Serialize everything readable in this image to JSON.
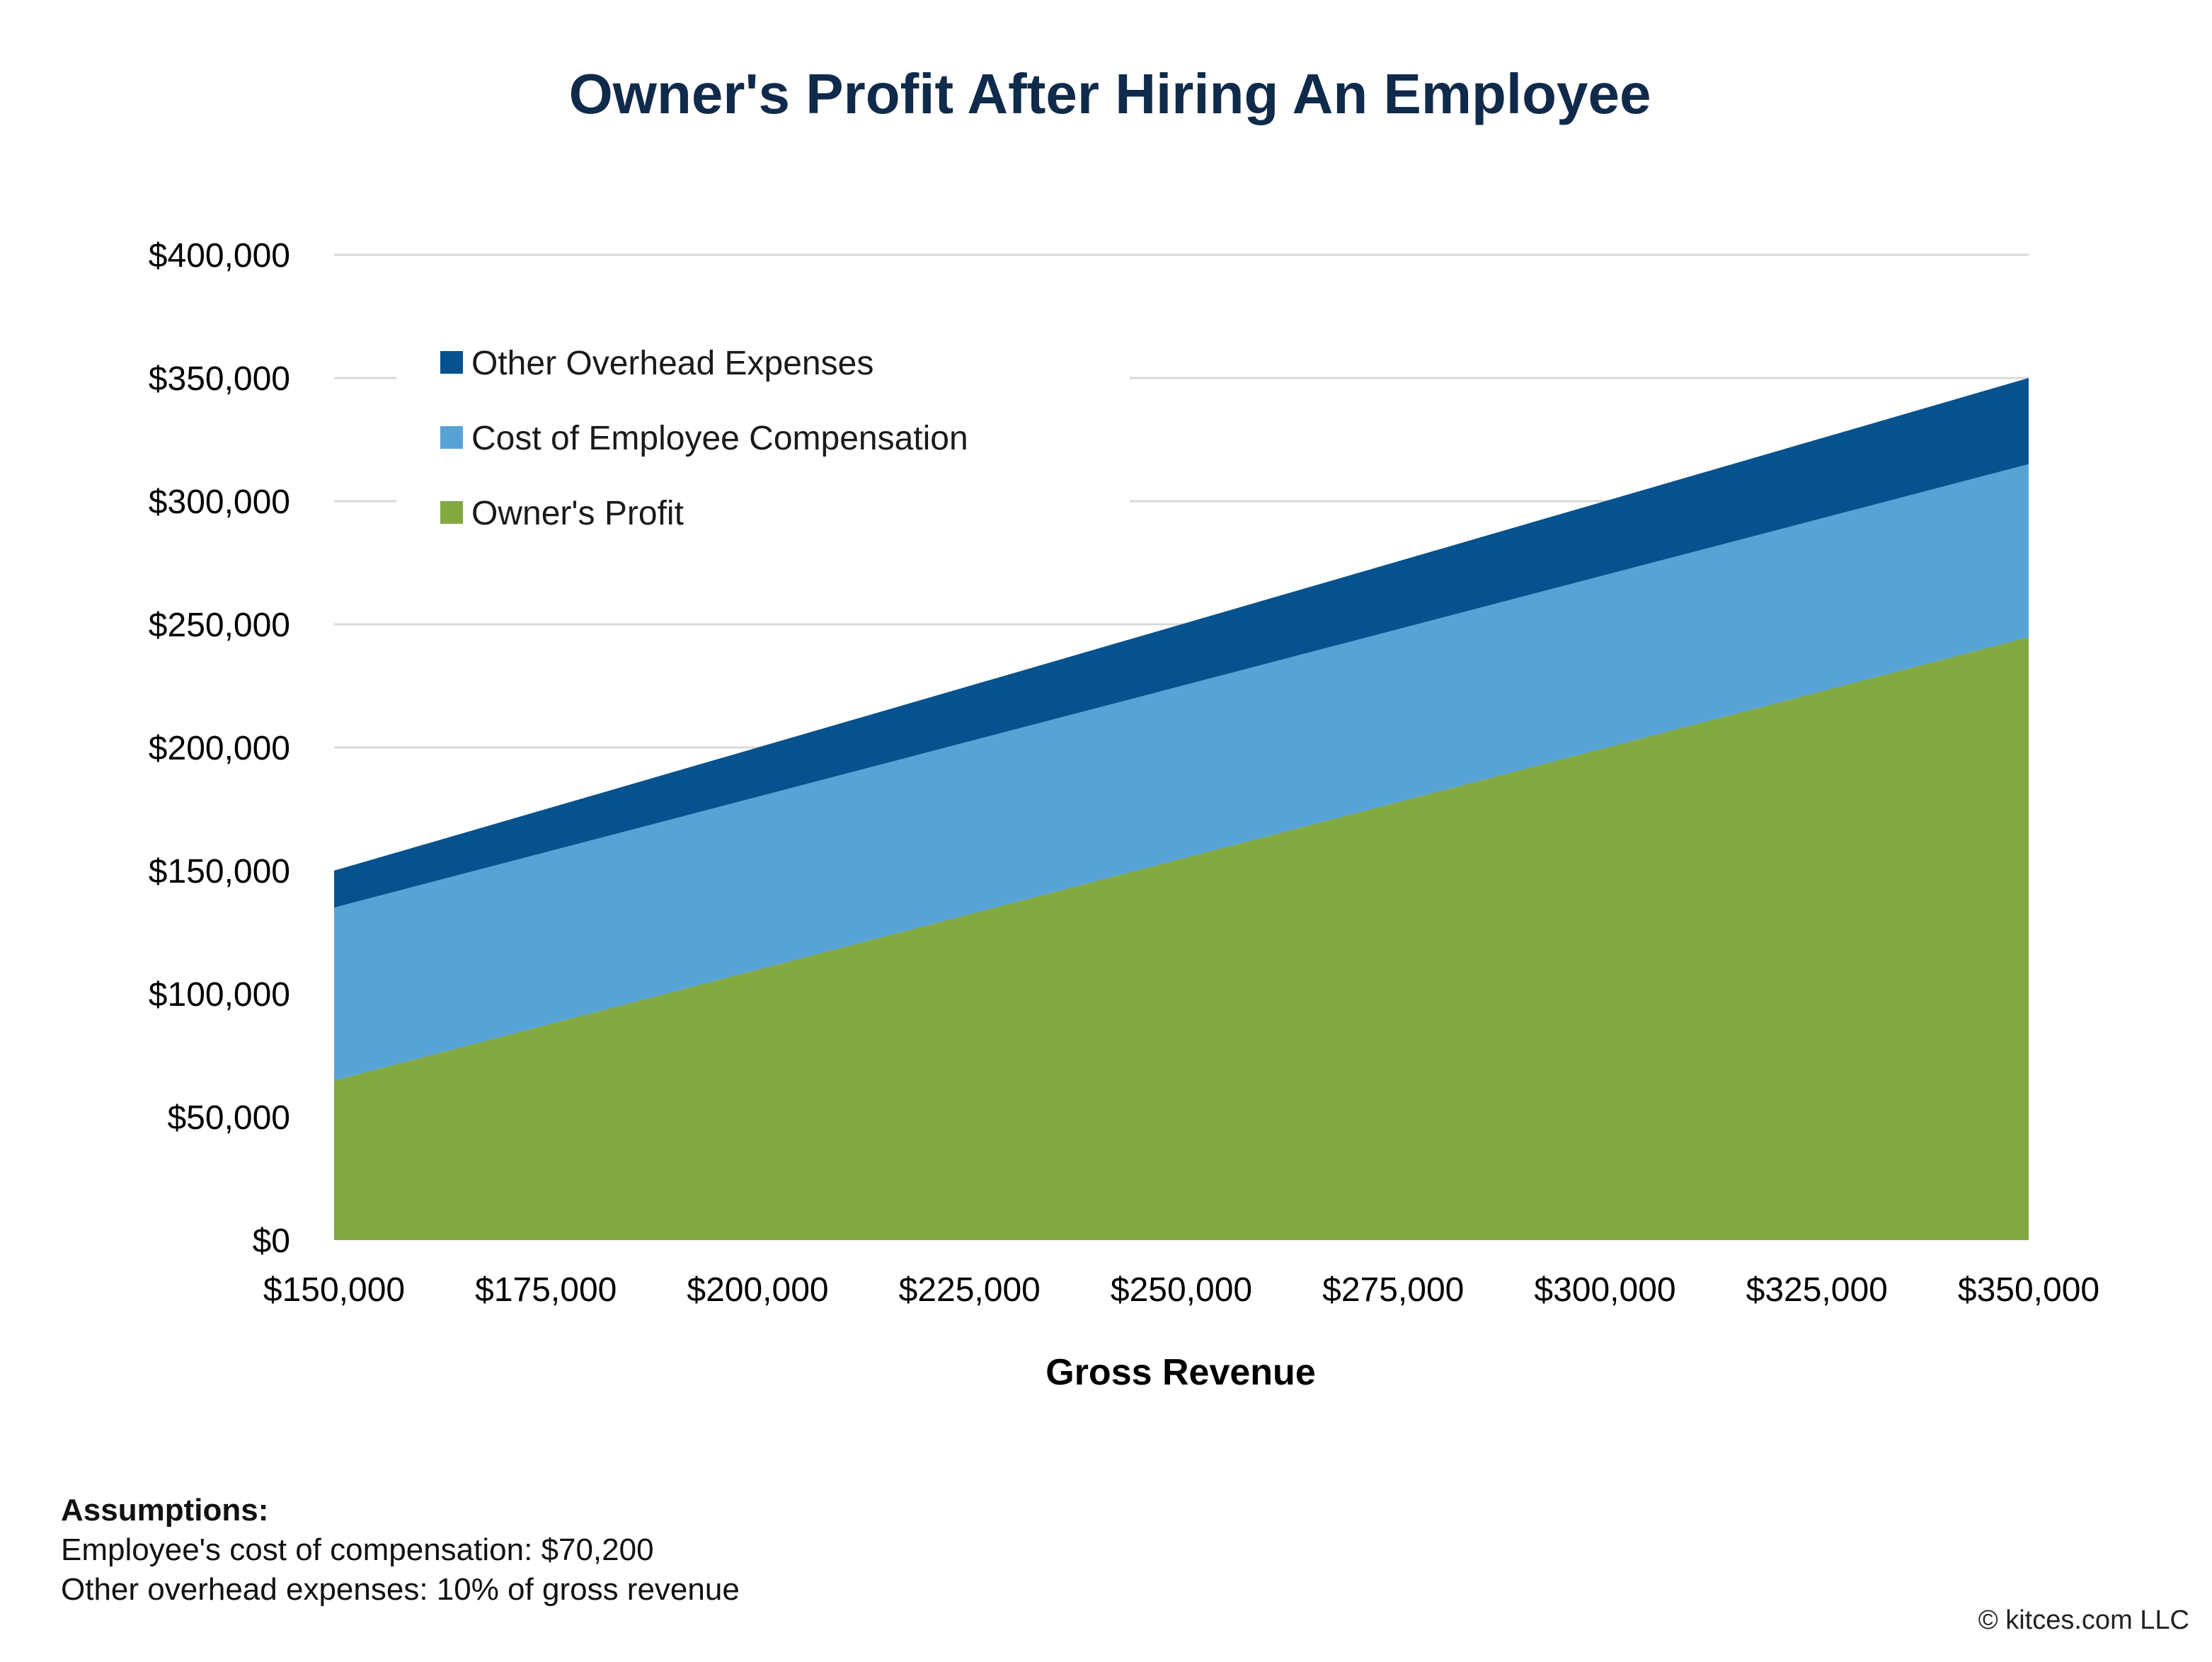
{
  "chart_data": {
    "type": "area",
    "stacked": true,
    "title": "Owner's Profit After Hiring An Employee",
    "xlabel": "Gross Revenue",
    "ylabel": "",
    "x": [
      150000,
      175000,
      200000,
      225000,
      250000,
      275000,
      300000,
      325000,
      350000
    ],
    "xlim": [
      150000,
      350000
    ],
    "ylim": [
      0,
      400000
    ],
    "x_tick_labels": [
      "$150,000",
      "$175,000",
      "$200,000",
      "$225,000",
      "$250,000",
      "$275,000",
      "$300,000",
      "$325,000",
      "$350,000"
    ],
    "y_ticks": [
      0,
      50000,
      100000,
      150000,
      200000,
      250000,
      300000,
      350000,
      400000
    ],
    "y_tick_labels": [
      "$0",
      "$50,000",
      "$100,000",
      "$150,000",
      "$200,000",
      "$250,000",
      "$300,000",
      "$350,000",
      "$400,000"
    ],
    "series": [
      {
        "name": "Owner's Profit",
        "color": "#82a840",
        "values": [
          64800,
          87300,
          109800,
          132300,
          154800,
          177300,
          199800,
          222300,
          244800
        ]
      },
      {
        "name": "Cost of Employee Compensation",
        "color": "#58a3d6",
        "values": [
          70200,
          70200,
          70200,
          70200,
          70200,
          70200,
          70200,
          70200,
          70200
        ]
      },
      {
        "name": "Other Overhead Expenses",
        "color": "#06528f",
        "values": [
          15000,
          17500,
          20000,
          22500,
          25000,
          27500,
          30000,
          32500,
          35000
        ]
      }
    ],
    "legend_order": [
      "Other Overhead Expenses",
      "Cost of Employee Compensation",
      "Owner's Profit"
    ],
    "legend_position": "top-left",
    "grid": "horizontal"
  },
  "notes": {
    "heading": "Assumptions:",
    "line1": "Employee's cost of compensation: $70,200",
    "line2": "Other overhead expenses: 10% of gross revenue"
  },
  "copyright": "© kitces.com LLC"
}
